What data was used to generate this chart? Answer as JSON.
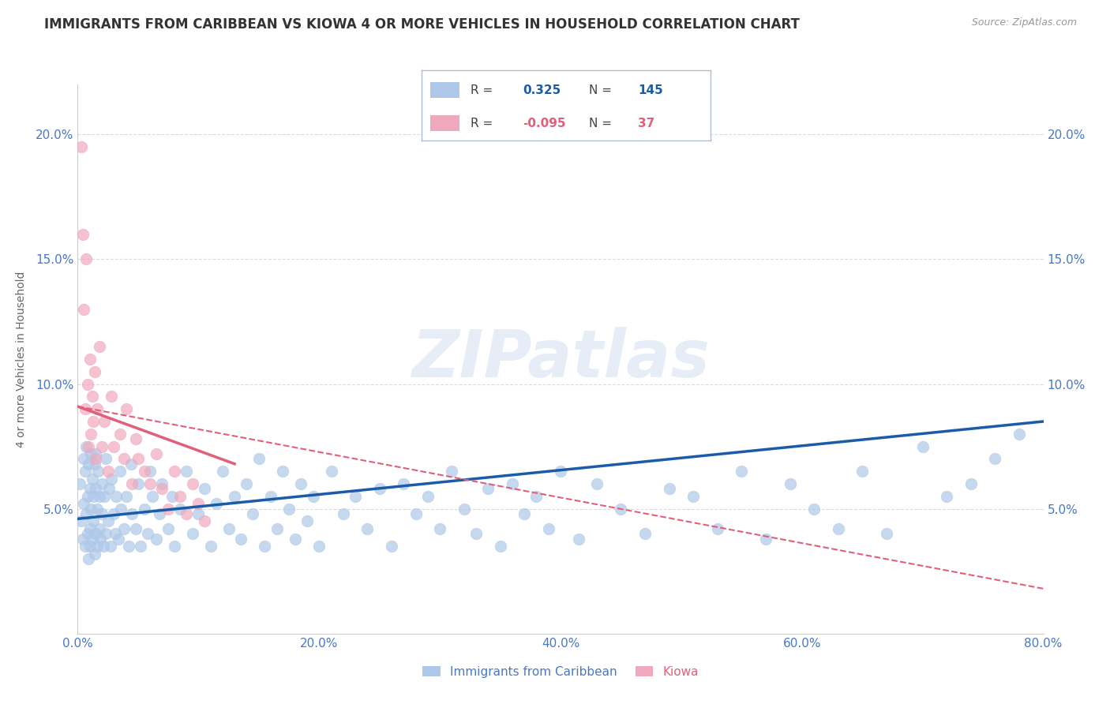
{
  "title": "IMMIGRANTS FROM CARIBBEAN VS KIOWA 4 OR MORE VEHICLES IN HOUSEHOLD CORRELATION CHART",
  "source_text": "Source: ZipAtlas.com",
  "ylabel": "4 or more Vehicles in Household",
  "watermark": "ZIPatlas",
  "legend_blue_r": "0.325",
  "legend_blue_n": "145",
  "legend_pink_r": "-0.095",
  "legend_pink_n": "37",
  "legend_label_blue": "Immigrants from Caribbean",
  "legend_label_pink": "Kiowa",
  "xlim": [
    0.0,
    0.8
  ],
  "ylim": [
    0.0,
    0.22
  ],
  "xtick_labels": [
    "0.0%",
    "20.0%",
    "40.0%",
    "60.0%",
    "80.0%"
  ],
  "xtick_values": [
    0.0,
    0.2,
    0.4,
    0.6,
    0.8
  ],
  "ytick_labels": [
    "5.0%",
    "10.0%",
    "15.0%",
    "20.0%"
  ],
  "ytick_values": [
    0.05,
    0.1,
    0.15,
    0.2
  ],
  "blue_color": "#adc8e8",
  "pink_color": "#f0a8bc",
  "trend_blue_color": "#1a5ca8",
  "trend_pink_color": "#e0607a",
  "title_fontsize": 12,
  "tick_label_color": "#4878c8",
  "background_color": "#ffffff",
  "blue_scatter_x": [
    0.002,
    0.003,
    0.004,
    0.005,
    0.005,
    0.006,
    0.006,
    0.007,
    0.007,
    0.008,
    0.008,
    0.009,
    0.009,
    0.01,
    0.01,
    0.01,
    0.011,
    0.011,
    0.012,
    0.012,
    0.013,
    0.013,
    0.014,
    0.014,
    0.015,
    0.015,
    0.015,
    0.016,
    0.016,
    0.017,
    0.018,
    0.018,
    0.019,
    0.02,
    0.02,
    0.021,
    0.022,
    0.023,
    0.023,
    0.025,
    0.026,
    0.027,
    0.028,
    0.03,
    0.031,
    0.032,
    0.034,
    0.035,
    0.036,
    0.038,
    0.04,
    0.042,
    0.044,
    0.045,
    0.048,
    0.05,
    0.052,
    0.055,
    0.058,
    0.06,
    0.062,
    0.065,
    0.068,
    0.07,
    0.075,
    0.078,
    0.08,
    0.085,
    0.09,
    0.095,
    0.1,
    0.105,
    0.11,
    0.115,
    0.12,
    0.125,
    0.13,
    0.135,
    0.14,
    0.145,
    0.15,
    0.155,
    0.16,
    0.165,
    0.17,
    0.175,
    0.18,
    0.185,
    0.19,
    0.195,
    0.2,
    0.21,
    0.22,
    0.23,
    0.24,
    0.25,
    0.26,
    0.27,
    0.28,
    0.29,
    0.3,
    0.31,
    0.32,
    0.33,
    0.34,
    0.35,
    0.36,
    0.37,
    0.38,
    0.39,
    0.4,
    0.415,
    0.43,
    0.45,
    0.47,
    0.49,
    0.51,
    0.53,
    0.55,
    0.57,
    0.59,
    0.61,
    0.63,
    0.65,
    0.67,
    0.7,
    0.72,
    0.74,
    0.76,
    0.78
  ],
  "blue_scatter_y": [
    0.06,
    0.045,
    0.038,
    0.07,
    0.052,
    0.035,
    0.065,
    0.048,
    0.075,
    0.04,
    0.055,
    0.03,
    0.068,
    0.042,
    0.058,
    0.035,
    0.05,
    0.072,
    0.038,
    0.062,
    0.045,
    0.055,
    0.032,
    0.068,
    0.04,
    0.058,
    0.072,
    0.035,
    0.05,
    0.065,
    0.042,
    0.055,
    0.038,
    0.06,
    0.048,
    0.035,
    0.055,
    0.04,
    0.07,
    0.045,
    0.058,
    0.035,
    0.062,
    0.048,
    0.04,
    0.055,
    0.038,
    0.065,
    0.05,
    0.042,
    0.055,
    0.035,
    0.068,
    0.048,
    0.042,
    0.06,
    0.035,
    0.05,
    0.04,
    0.065,
    0.055,
    0.038,
    0.048,
    0.06,
    0.042,
    0.055,
    0.035,
    0.05,
    0.065,
    0.04,
    0.048,
    0.058,
    0.035,
    0.052,
    0.065,
    0.042,
    0.055,
    0.038,
    0.06,
    0.048,
    0.07,
    0.035,
    0.055,
    0.042,
    0.065,
    0.05,
    0.038,
    0.06,
    0.045,
    0.055,
    0.035,
    0.065,
    0.048,
    0.055,
    0.042,
    0.058,
    0.035,
    0.06,
    0.048,
    0.055,
    0.042,
    0.065,
    0.05,
    0.04,
    0.058,
    0.035,
    0.06,
    0.048,
    0.055,
    0.042,
    0.065,
    0.038,
    0.06,
    0.05,
    0.04,
    0.058,
    0.055,
    0.042,
    0.065,
    0.038,
    0.06,
    0.05,
    0.042,
    0.065,
    0.04,
    0.075,
    0.055,
    0.06,
    0.07,
    0.08
  ],
  "pink_scatter_x": [
    0.003,
    0.004,
    0.005,
    0.006,
    0.007,
    0.008,
    0.009,
    0.01,
    0.011,
    0.012,
    0.013,
    0.014,
    0.015,
    0.016,
    0.018,
    0.02,
    0.022,
    0.025,
    0.028,
    0.03,
    0.035,
    0.038,
    0.04,
    0.045,
    0.048,
    0.05,
    0.055,
    0.06,
    0.065,
    0.07,
    0.075,
    0.08,
    0.085,
    0.09,
    0.095,
    0.1,
    0.105
  ],
  "pink_scatter_y": [
    0.195,
    0.16,
    0.13,
    0.09,
    0.15,
    0.1,
    0.075,
    0.11,
    0.08,
    0.095,
    0.085,
    0.105,
    0.07,
    0.09,
    0.115,
    0.075,
    0.085,
    0.065,
    0.095,
    0.075,
    0.08,
    0.07,
    0.09,
    0.06,
    0.078,
    0.07,
    0.065,
    0.06,
    0.072,
    0.058,
    0.05,
    0.065,
    0.055,
    0.048,
    0.06,
    0.052,
    0.045
  ],
  "blue_trendline_x": [
    0.0,
    0.8
  ],
  "blue_trendline_y": [
    0.046,
    0.085
  ],
  "pink_solid_trendline_x": [
    0.0,
    0.13
  ],
  "pink_solid_trendline_y": [
    0.091,
    0.068
  ],
  "pink_dashed_trendline_x": [
    0.0,
    0.8
  ],
  "pink_dashed_trendline_y": [
    0.091,
    0.018
  ]
}
